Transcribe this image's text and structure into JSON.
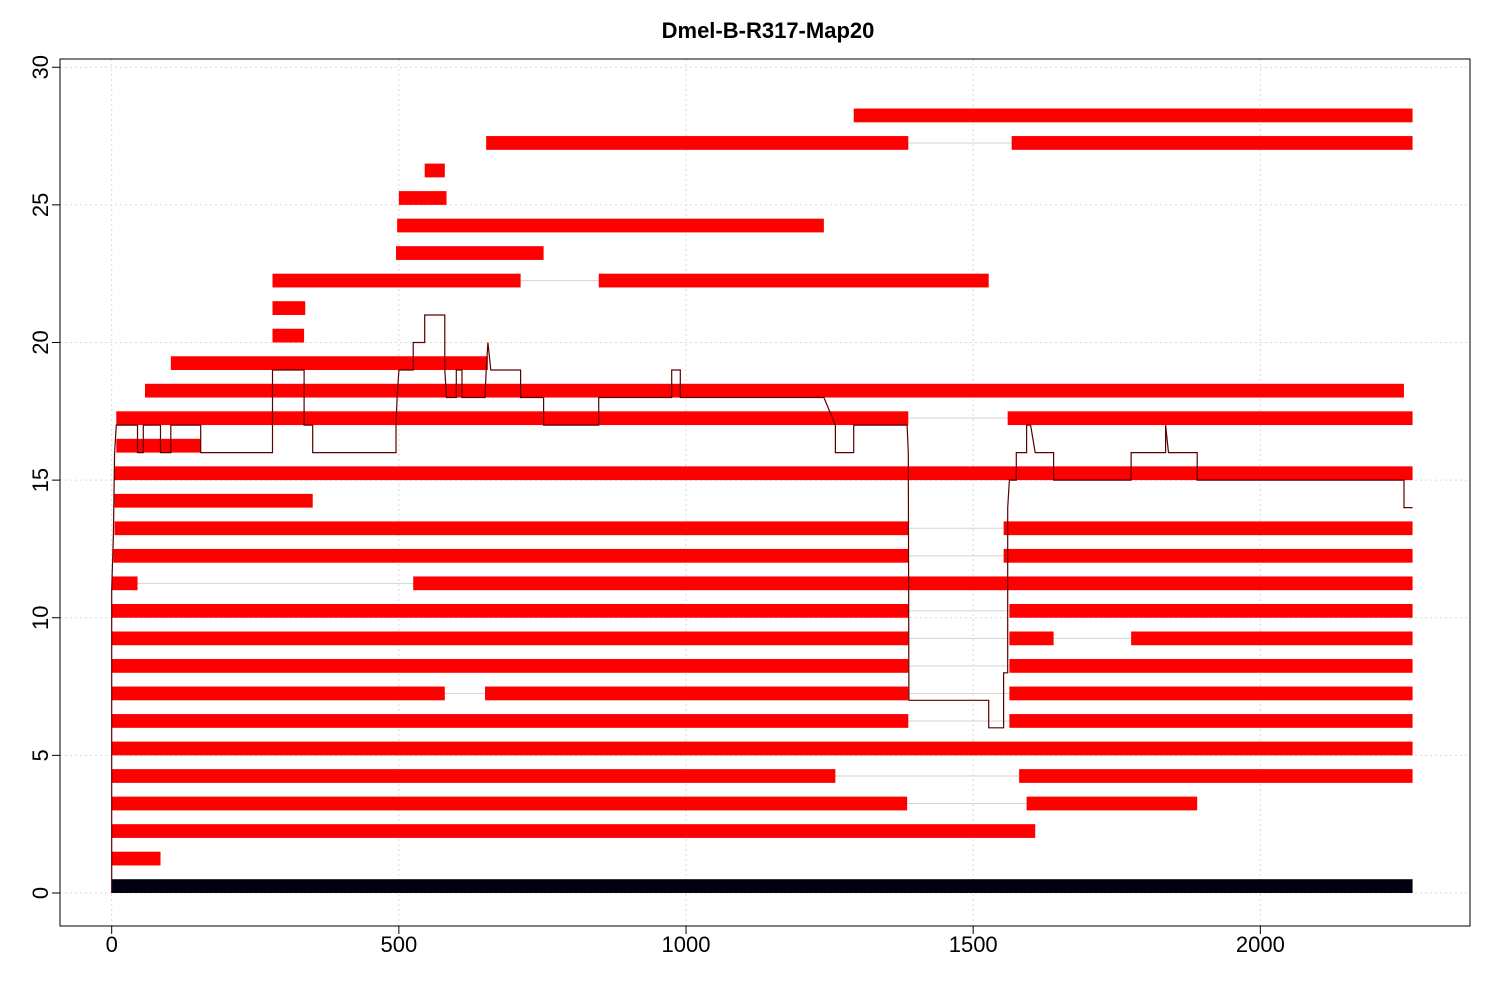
{
  "chart_data": {
    "type": "segments",
    "title": "Dmel-B-R317-Map20",
    "xlabel": "",
    "ylabel": "",
    "xlim": [
      -90,
      2365
    ],
    "ylim": [
      -1.2,
      30.3
    ],
    "x_ticks": [
      0,
      500,
      1000,
      1500,
      2000
    ],
    "y_ticks": [
      0,
      5,
      10,
      15,
      20,
      25,
      30
    ],
    "grid": true,
    "reference": {
      "y": 0.25,
      "x0": 0,
      "x1": 2265,
      "color": "#000011"
    },
    "colors": {
      "read": "#ff0000",
      "gap": "#d3d3d3",
      "coverage": "#5a0000",
      "grid": "#d9d9d9"
    },
    "reads": [
      {
        "y": 1.25,
        "segments": [
          [
            0,
            85
          ]
        ]
      },
      {
        "y": 2.25,
        "segments": [
          [
            0,
            1608
          ]
        ]
      },
      {
        "y": 3.25,
        "segments": [
          [
            0,
            1385
          ],
          [
            1593,
            1890
          ]
        ]
      },
      {
        "y": 4.25,
        "segments": [
          [
            0,
            1260
          ],
          [
            1580,
            2265
          ]
        ]
      },
      {
        "y": 5.25,
        "segments": [
          [
            0,
            2265
          ]
        ]
      },
      {
        "y": 6.25,
        "segments": [
          [
            0,
            1387
          ],
          [
            1563,
            2265
          ]
        ]
      },
      {
        "y": 7.25,
        "segments": [
          [
            0,
            580
          ],
          [
            650,
            1387
          ],
          [
            1563,
            2265
          ]
        ]
      },
      {
        "y": 8.25,
        "segments": [
          [
            0,
            1387
          ],
          [
            1563,
            2265
          ]
        ]
      },
      {
        "y": 9.25,
        "segments": [
          [
            0,
            1387
          ],
          [
            1563,
            1640
          ],
          [
            1775,
            2265
          ]
        ]
      },
      {
        "y": 10.25,
        "segments": [
          [
            0,
            1387
          ],
          [
            1563,
            2265
          ]
        ]
      },
      {
        "y": 11.25,
        "segments": [
          [
            0,
            45
          ],
          [
            525,
            2265
          ]
        ]
      },
      {
        "y": 12.25,
        "segments": [
          [
            3,
            1387
          ],
          [
            1553,
            2265
          ]
        ]
      },
      {
        "y": 13.25,
        "segments": [
          [
            5,
            1387
          ],
          [
            1553,
            2265
          ]
        ]
      },
      {
        "y": 14.25,
        "segments": [
          [
            5,
            350
          ]
        ]
      },
      {
        "y": 15.25,
        "segments": [
          [
            5,
            2265
          ]
        ]
      },
      {
        "y": 16.25,
        "segments": [
          [
            8,
            155
          ]
        ]
      },
      {
        "y": 17.25,
        "segments": [
          [
            8,
            1387
          ],
          [
            1560,
            2265
          ]
        ]
      },
      {
        "y": 18.25,
        "segments": [
          [
            58,
            2250
          ]
        ]
      },
      {
        "y": 19.25,
        "segments": [
          [
            103,
            655
          ]
        ]
      },
      {
        "y": 20.25,
        "segments": [
          [
            280,
            335
          ]
        ]
      },
      {
        "y": 21.25,
        "segments": [
          [
            280,
            337
          ]
        ]
      },
      {
        "y": 22.25,
        "segments": [
          [
            280,
            712
          ],
          [
            848,
            1527
          ]
        ]
      },
      {
        "y": 23.25,
        "segments": [
          [
            495,
            752
          ]
        ]
      },
      {
        "y": 24.25,
        "segments": [
          [
            497,
            1240
          ]
        ]
      },
      {
        "y": 25.25,
        "segments": [
          [
            500,
            583
          ]
        ]
      },
      {
        "y": 26.25,
        "segments": [
          [
            545,
            580
          ]
        ]
      },
      {
        "y": 27.25,
        "segments": [
          [
            652,
            1387
          ],
          [
            1567,
            2265
          ]
        ]
      },
      {
        "y": 28.25,
        "segments": [
          [
            1292,
            2265
          ]
        ]
      }
    ],
    "coverage": [
      [
        0,
        0
      ],
      [
        0,
        11
      ],
      [
        3,
        13
      ],
      [
        5,
        16
      ],
      [
        8,
        17
      ],
      [
        45,
        17
      ],
      [
        45,
        16
      ],
      [
        55,
        16
      ],
      [
        55,
        17
      ],
      [
        85,
        17
      ],
      [
        85,
        16
      ],
      [
        103,
        16
      ],
      [
        103,
        17
      ],
      [
        155,
        17
      ],
      [
        155,
        16
      ],
      [
        280,
        16
      ],
      [
        280,
        19
      ],
      [
        335,
        19
      ],
      [
        335,
        17
      ],
      [
        350,
        17
      ],
      [
        350,
        16
      ],
      [
        495,
        16
      ],
      [
        495,
        17
      ],
      [
        497,
        18
      ],
      [
        500,
        19
      ],
      [
        525,
        19
      ],
      [
        525,
        20
      ],
      [
        545,
        20
      ],
      [
        545,
        21
      ],
      [
        580,
        21
      ],
      [
        580,
        19
      ],
      [
        583,
        18
      ],
      [
        600,
        18
      ],
      [
        600,
        19
      ],
      [
        610,
        19
      ],
      [
        610,
        18
      ],
      [
        650,
        18
      ],
      [
        652,
        19
      ],
      [
        655,
        20
      ],
      [
        660,
        19
      ],
      [
        712,
        19
      ],
      [
        712,
        18
      ],
      [
        752,
        18
      ],
      [
        752,
        17
      ],
      [
        848,
        17
      ],
      [
        848,
        18
      ],
      [
        975,
        18
      ],
      [
        975,
        19
      ],
      [
        990,
        19
      ],
      [
        990,
        18
      ],
      [
        1240,
        18
      ],
      [
        1260,
        17
      ],
      [
        1260,
        16
      ],
      [
        1292,
        16
      ],
      [
        1292,
        17
      ],
      [
        1385,
        17
      ],
      [
        1387,
        16
      ],
      [
        1388,
        7
      ],
      [
        1527,
        7
      ],
      [
        1527,
        6
      ],
      [
        1553,
        6
      ],
      [
        1553,
        8
      ],
      [
        1560,
        8
      ],
      [
        1560,
        14
      ],
      [
        1563,
        15
      ],
      [
        1575,
        15
      ],
      [
        1575,
        16
      ],
      [
        1593,
        16
      ],
      [
        1593,
        17
      ],
      [
        1600,
        17
      ],
      [
        1608,
        16
      ],
      [
        1640,
        16
      ],
      [
        1640,
        15
      ],
      [
        1775,
        15
      ],
      [
        1775,
        16
      ],
      [
        1835,
        16
      ],
      [
        1835,
        17
      ],
      [
        1840,
        16
      ],
      [
        1890,
        16
      ],
      [
        1890,
        15
      ],
      [
        2250,
        15
      ],
      [
        2250,
        14
      ],
      [
        2265,
        14
      ]
    ]
  }
}
